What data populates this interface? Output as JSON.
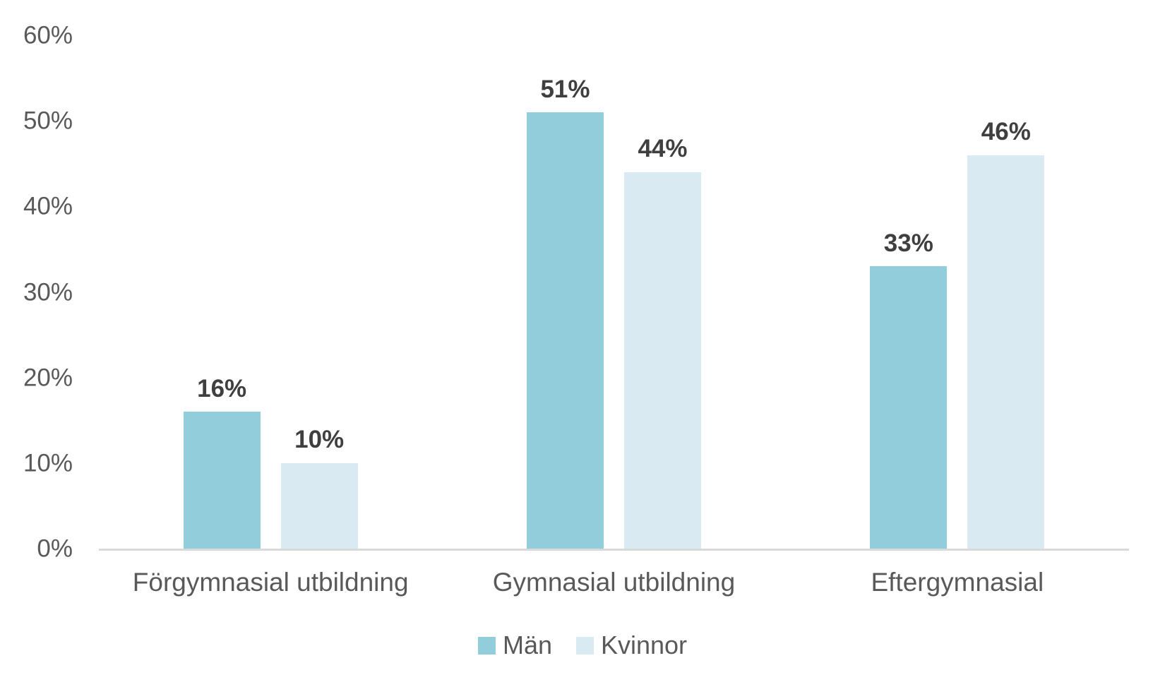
{
  "chart_data": {
    "type": "bar",
    "title": "",
    "xlabel": "",
    "ylabel": "",
    "categories": [
      "Förgymnasial utbildning",
      "Gymnasial utbildning",
      "Eftergymnasial"
    ],
    "series": [
      {
        "name": "Män",
        "color": "#92CDDC",
        "values": [
          16,
          51,
          33
        ],
        "labels": [
          "16%",
          "51%",
          "33%"
        ]
      },
      {
        "name": "Kvinnor",
        "color": "#D9EAF2",
        "values": [
          10,
          44,
          46
        ],
        "labels": [
          "10%",
          "44%",
          "46%"
        ]
      }
    ],
    "ylim": [
      0,
      60
    ],
    "yticks": [
      0,
      10,
      20,
      30,
      40,
      50,
      60
    ],
    "ytick_labels": [
      "0%",
      "10%",
      "20%",
      "30%",
      "40%",
      "50%",
      "60%"
    ],
    "grid": false,
    "legend_position": "bottom"
  },
  "colors": {
    "background": "#FFFFFF",
    "axis_line": "#D9D9D9",
    "tick_text": "#595959",
    "category_text": "#595959",
    "legend_text": "#595959",
    "data_label_text": "#3F3F3F",
    "series_man": "#92CDDC",
    "series_kvinnor": "#D9EAF2"
  }
}
